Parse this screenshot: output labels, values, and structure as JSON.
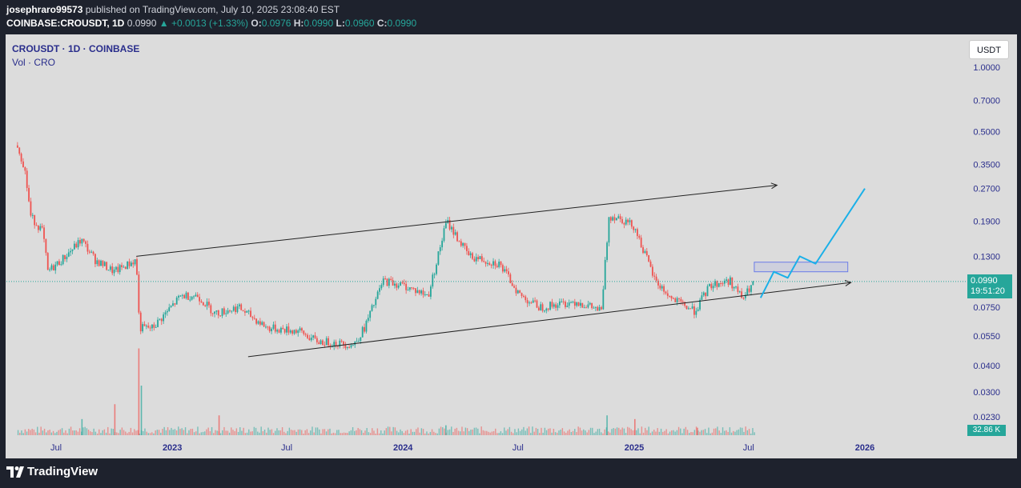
{
  "header": {
    "author": "josephraro99573",
    "published": "published on TradingView.com, July 10, 2025 23:08:40 EST",
    "symbol": "COINBASE:CROUSDT, 1D",
    "last": "0.0990",
    "change": "▲ +0.0013 (+1.33%)",
    "o_label": "O:",
    "o": "0.0976",
    "h_label": "H:",
    "h": "0.0990",
    "l_label": "L:",
    "l": "0.0960",
    "c_label": "C:",
    "c": "0.0990"
  },
  "legend": {
    "title": "CROUSDT · 1D · COINBASE",
    "volume": "Vol · CRO"
  },
  "currency_button": "USDT",
  "price_label": {
    "price": "0.0990",
    "countdown": "19:51:20"
  },
  "volume_label": "32.86 K",
  "footer": {
    "brand": "TradingView"
  },
  "colors": {
    "up": "#26a69a",
    "down": "#ef5350",
    "projection": "#1ab0e8",
    "zone": "#6a7be8",
    "background": "#dcdcdc"
  },
  "chart_data": {
    "type": "candlestick",
    "scale": "log",
    "y_ticks": [
      "1.0000",
      "0.7000",
      "0.5000",
      "0.3500",
      "0.2700",
      "0.1900",
      "0.1300",
      "0.0750",
      "0.0550",
      "0.0400",
      "0.0300",
      "0.0230"
    ],
    "x_ticks": [
      {
        "label": "Jul",
        "date": "2022-07-01",
        "bold": false
      },
      {
        "label": "2023",
        "date": "2023-01-01",
        "bold": true
      },
      {
        "label": "Jul",
        "date": "2023-07-01",
        "bold": false
      },
      {
        "label": "2024",
        "date": "2024-01-01",
        "bold": true
      },
      {
        "label": "Jul",
        "date": "2024-07-01",
        "bold": false
      },
      {
        "label": "2025",
        "date": "2025-01-01",
        "bold": true
      },
      {
        "label": "Jul",
        "date": "2025-07-01",
        "bold": false
      },
      {
        "label": "2026",
        "date": "2026-01-01",
        "bold": true
      }
    ],
    "price_path": [
      [
        "2022-05-01",
        0.43
      ],
      [
        "2022-05-12",
        0.34
      ],
      [
        "2022-05-22",
        0.2
      ],
      [
        "2022-06-10",
        0.17
      ],
      [
        "2022-06-18",
        0.11
      ],
      [
        "2022-07-10",
        0.125
      ],
      [
        "2022-08-10",
        0.155
      ],
      [
        "2022-09-01",
        0.125
      ],
      [
        "2022-10-01",
        0.11
      ],
      [
        "2022-11-05",
        0.125
      ],
      [
        "2022-11-10",
        0.06
      ],
      [
        "2022-12-01",
        0.06
      ],
      [
        "2023-01-15",
        0.085
      ],
      [
        "2023-02-10",
        0.085
      ],
      [
        "2023-03-10",
        0.07
      ],
      [
        "2023-04-15",
        0.075
      ],
      [
        "2023-06-01",
        0.06
      ],
      [
        "2023-07-20",
        0.058
      ],
      [
        "2023-08-17",
        0.052
      ],
      [
        "2023-10-15",
        0.05
      ],
      [
        "2023-11-01",
        0.06
      ],
      [
        "2023-12-01",
        0.1
      ],
      [
        "2024-01-01",
        0.095
      ],
      [
        "2024-02-10",
        0.085
      ],
      [
        "2024-03-10",
        0.19
      ],
      [
        "2024-04-15",
        0.13
      ],
      [
        "2024-06-01",
        0.12
      ],
      [
        "2024-07-05",
        0.085
      ],
      [
        "2024-08-05",
        0.075
      ],
      [
        "2024-10-01",
        0.08
      ],
      [
        "2024-11-10",
        0.072
      ],
      [
        "2024-11-22",
        0.2
      ],
      [
        "2024-12-05",
        0.2
      ],
      [
        "2025-01-01",
        0.18
      ],
      [
        "2025-02-03",
        0.1
      ],
      [
        "2025-03-01",
        0.082
      ],
      [
        "2025-04-07",
        0.072
      ],
      [
        "2025-05-01",
        0.095
      ],
      [
        "2025-06-01",
        0.1
      ],
      [
        "2025-06-22",
        0.082
      ],
      [
        "2025-07-10",
        0.099
      ]
    ],
    "last_price": 0.099,
    "trendlines": [
      {
        "from": [
          "2022-11-05",
          0.13
        ],
        "to": [
          "2025-08-15",
          0.28
        ],
        "arrow": true
      },
      {
        "from": [
          "2023-05-01",
          0.044
        ],
        "to": [
          "2025-12-10",
          0.098
        ],
        "arrow": true
      }
    ],
    "projection": [
      [
        "2025-07-20",
        0.083
      ],
      [
        "2025-08-10",
        0.11
      ],
      [
        "2025-09-01",
        0.103
      ],
      [
        "2025-09-20",
        0.13
      ],
      [
        "2025-10-15",
        0.12
      ],
      [
        "2026-01-01",
        0.27
      ]
    ],
    "target_zone": {
      "from": "2025-07-10",
      "to": "2025-12-05",
      "low": 0.11,
      "high": 0.122
    },
    "volume_spikes": [
      [
        "2022-11-08",
        70
      ],
      [
        "2022-11-12",
        40
      ],
      [
        "2022-10-01",
        25
      ],
      [
        "2022-08-10",
        13
      ],
      [
        "2023-03-15",
        16
      ],
      [
        "2024-11-18",
        16
      ],
      [
        "2025-01-01",
        13
      ],
      [
        "2024-03-08",
        8
      ],
      [
        "2025-04-10",
        6
      ]
    ]
  }
}
